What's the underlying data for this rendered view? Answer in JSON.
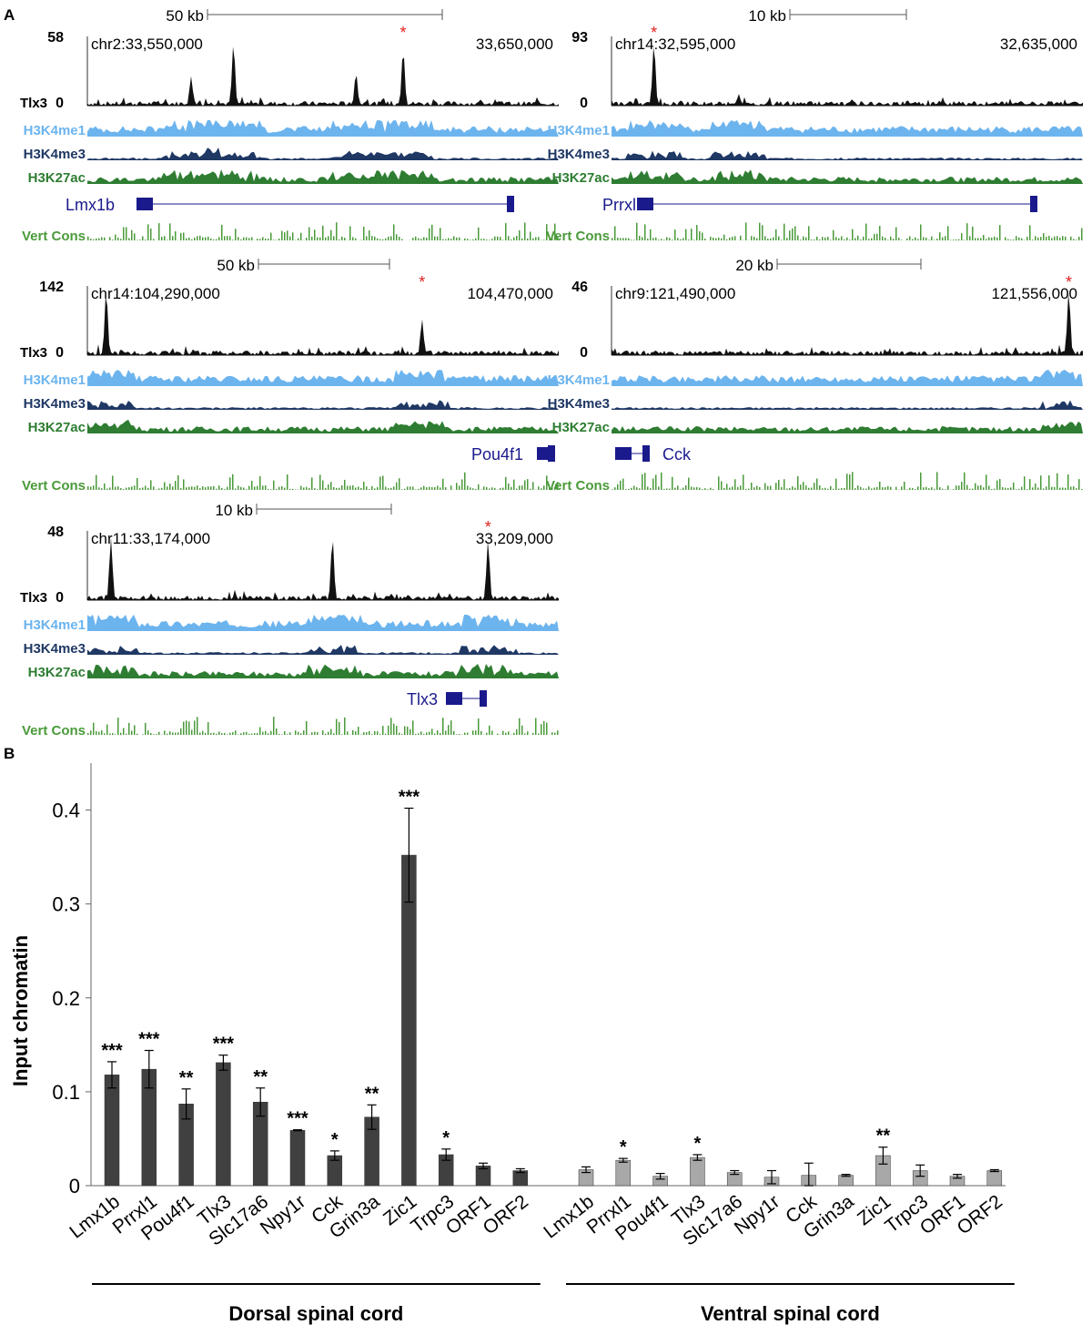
{
  "panelA": {
    "label": "A",
    "track_labels": {
      "tlx3": "Tlx3",
      "me1": "H3K4me1",
      "me3": "H3K4me3",
      "ac": "H3K27ac",
      "cons": "Vert Cons"
    },
    "y_zero": "0",
    "asterisk": "*",
    "colors": {
      "tlx3": "#111111",
      "me1": "#6cb4ee",
      "me3": "#1f3864",
      "ac": "#2e7d32",
      "cons": "#4a9a3a",
      "gene": "#1a1a8c",
      "star": "#e02020"
    },
    "loci": [
      {
        "scale": "50 kb",
        "ymax": "58",
        "coord_left": "chr2:33,550,000",
        "coord_right": "33,650,000",
        "gene": "Lmx1b",
        "peaks": [
          {
            "pos": 0.22,
            "h": 0.45
          },
          {
            "pos": 0.31,
            "h": 0.95
          },
          {
            "pos": 0.57,
            "h": 0.5
          },
          {
            "pos": 0.67,
            "h": 0.85
          }
        ]
      },
      {
        "scale": "10 kb",
        "ymax": "93",
        "coord_left": "chr14:32,595,000",
        "coord_right": "32,635,000",
        "gene": "Prrxl1",
        "peaks": [
          {
            "pos": 0.09,
            "h": 0.95
          },
          {
            "pos": 0.27,
            "h": 0.18
          }
        ]
      },
      {
        "scale": "50 kb",
        "ymax": "142",
        "coord_left": "chr14:104,290,000",
        "coord_right": "104,470,000",
        "gene": "Pou4f1",
        "peaks": [
          {
            "pos": 0.04,
            "h": 0.98
          },
          {
            "pos": 0.71,
            "h": 0.55
          }
        ]
      },
      {
        "scale": "20 kb",
        "ymax": "46",
        "coord_left": "chr9:121,490,000",
        "coord_right": "121,556,000",
        "gene": "Cck",
        "peaks": [
          {
            "pos": 0.97,
            "h": 0.98
          }
        ]
      },
      {
        "scale": "10 kb",
        "ymax": "48",
        "coord_left": "chr11:33,174,000",
        "coord_right": "33,209,000",
        "gene": "Tlx3",
        "peaks": [
          {
            "pos": 0.05,
            "h": 0.95
          },
          {
            "pos": 0.52,
            "h": 0.95
          },
          {
            "pos": 0.85,
            "h": 0.92
          }
        ]
      }
    ]
  },
  "chart_data": {
    "panel_label": "B",
    "type": "bar",
    "ylabel": "Input chromatin",
    "ylim": [
      0,
      0.45
    ],
    "yticks": [
      "0",
      "0.1",
      "0.2",
      "0.3",
      "0.4"
    ],
    "colors": {
      "dorsal": "#404040",
      "ventral": "#a8a8a8"
    },
    "groups": [
      {
        "name": "Dorsal spinal cord",
        "categories": [
          "Lmx1b",
          "Prrxl1",
          "Pou4f1",
          "Tlx3",
          "Slc17a6",
          "Npy1r",
          "Cck",
          "Grin3a",
          "Zic1",
          "Trpc3",
          "ORF1",
          "ORF2"
        ],
        "values": [
          0.118,
          0.124,
          0.087,
          0.131,
          0.089,
          0.059,
          0.032,
          0.073,
          0.352,
          0.033,
          0.021,
          0.016
        ],
        "errors": [
          0.014,
          0.02,
          0.016,
          0.008,
          0.015,
          0.0005,
          0.005,
          0.013,
          0.05,
          0.006,
          0.003,
          0.002
        ],
        "significance": [
          "***",
          "***",
          "**",
          "***",
          "**",
          "***",
          "*",
          "**",
          "***",
          "*",
          "",
          ""
        ]
      },
      {
        "name": "Ventral spinal cord",
        "categories": [
          "Lmx1b",
          "Prrxl1",
          "Pou4f1",
          "Tlx3",
          "Slc17a6",
          "Npy1r",
          "Cck",
          "Grin3a",
          "Zic1",
          "Trpc3",
          "ORF1",
          "ORF2"
        ],
        "values": [
          0.017,
          0.027,
          0.01,
          0.03,
          0.014,
          0.009,
          0.011,
          0.011,
          0.032,
          0.016,
          0.01,
          0.016
        ],
        "errors": [
          0.003,
          0.002,
          0.003,
          0.003,
          0.002,
          0.007,
          0.013,
          0.001,
          0.009,
          0.006,
          0.002,
          0.001
        ],
        "significance": [
          "",
          "*",
          "",
          "*",
          "",
          "",
          "",
          "",
          "**",
          "",
          "",
          ""
        ]
      }
    ]
  }
}
